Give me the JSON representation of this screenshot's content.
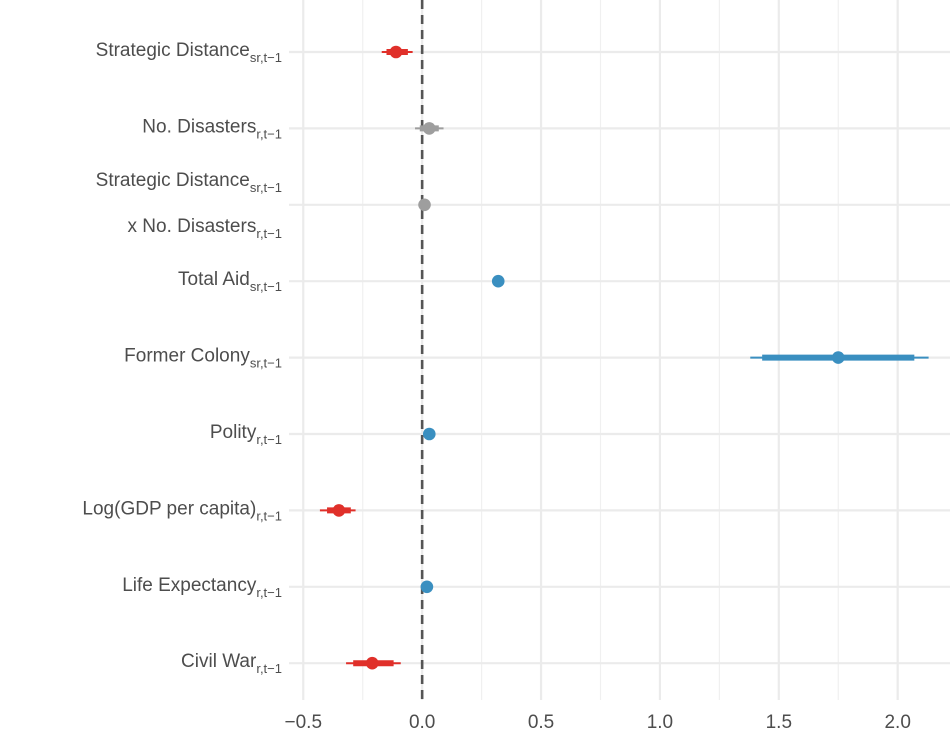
{
  "chart_data": {
    "type": "coefficient-plot",
    "x_ticks": [
      "−0.5",
      "0.0",
      "0.5",
      "1.0",
      "1.5",
      "2.0"
    ],
    "x_tick_values": [
      -0.5,
      0,
      0.5,
      1.0,
      1.5,
      2.0
    ],
    "xlim": [
      -0.56,
      2.22
    ],
    "reference_line": 0,
    "grid": true,
    "colors": {
      "negative": "#e0302a",
      "null": "#9e9e9e",
      "positive": "#3a8fc0"
    },
    "terms": [
      {
        "label": "Strategic Distance",
        "sub": "sr,t−1",
        "estimate": -0.11,
        "ci90": [
          -0.15,
          -0.06
        ],
        "ci95": [
          -0.17,
          -0.04
        ],
        "sig": "negative"
      },
      {
        "label": "No. Disasters",
        "sub": "r,t−1",
        "estimate": 0.03,
        "ci90": [
          -0.01,
          0.07
        ],
        "ci95": [
          -0.03,
          0.09
        ],
        "sig": "null"
      },
      {
        "label": "Strategic Distance",
        "sub": "sr,t−1",
        "label2": "x No. Disasters",
        "sub2": "r,t−1",
        "estimate": 0.01,
        "ci90": [
          0.0,
          0.02
        ],
        "ci95": [
          -0.005,
          0.025
        ],
        "sig": "null"
      },
      {
        "label": "Total Aid",
        "sub": "sr,t−1",
        "estimate": 0.32,
        "ci90": [
          0.31,
          0.33
        ],
        "ci95": [
          0.305,
          0.335
        ],
        "sig": "positive"
      },
      {
        "label": "Former Colony",
        "sub": "sr,t−1",
        "estimate": 1.75,
        "ci90": [
          1.43,
          2.07
        ],
        "ci95": [
          1.38,
          2.13
        ],
        "sig": "positive"
      },
      {
        "label": "Polity",
        "sub": "r,t−1",
        "estimate": 0.03,
        "ci90": [
          0.02,
          0.04
        ],
        "ci95": [
          0.015,
          0.045
        ],
        "sig": "positive"
      },
      {
        "label": "Log(GDP per capita)",
        "sub": "r,t−1",
        "estimate": -0.35,
        "ci90": [
          -0.4,
          -0.3
        ],
        "ci95": [
          -0.43,
          -0.28
        ],
        "sig": "negative"
      },
      {
        "label": "Life Expectancy",
        "sub": "r,t−1",
        "estimate": 0.02,
        "ci90": [
          0.01,
          0.03
        ],
        "ci95": [
          0.005,
          0.035
        ],
        "sig": "positive"
      },
      {
        "label": "Civil War",
        "sub": "r,t−1",
        "estimate": -0.21,
        "ci90": [
          -0.29,
          -0.12
        ],
        "ci95": [
          -0.32,
          -0.09
        ],
        "sig": "negative"
      }
    ]
  }
}
